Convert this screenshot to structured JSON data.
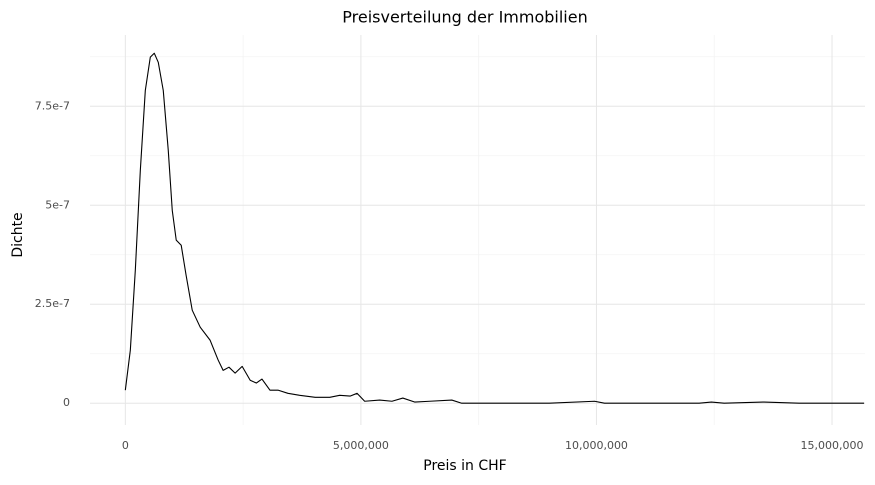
{
  "chart_data": {
    "type": "line",
    "title": "Preisverteilung der Immobilien",
    "x_label": "Preis in CHF",
    "y_label": "Dichte",
    "color": "#000000",
    "grid": true,
    "x": [
      0,
      106000,
      212000,
      318000,
      424000,
      530000,
      614000,
      699000,
      805000,
      911000,
      996000,
      1080000,
      1186000,
      1290000,
      1420000,
      1589000,
      1800000,
      1970000,
      2076000,
      2200000,
      2330000,
      2480000,
      2650000,
      2780000,
      2900000,
      3070000,
      3240000,
      3450000,
      3700000,
      4030000,
      4340000,
      4550000,
      4770000,
      4920000,
      5080000,
      5400000,
      5660000,
      5890000,
      6140000,
      6460000,
      6930000,
      7140000,
      7940000,
      9000000,
      9960000,
      10170000,
      12180000,
      12440000,
      12710000,
      13560000,
      14300000,
      14940000,
      15680000
    ],
    "values": [
      3.3e-08,
      1.34e-07,
      3.36e-07,
      5.88e-07,
      7.9e-07,
      8.74e-07,
      8.84e-07,
      8.61e-07,
      7.9e-07,
      6.39e-07,
      4.87e-07,
      4.12e-07,
      3.99e-07,
      3.23e-07,
      2.35e-07,
      1.92e-07,
      1.59e-07,
      1.09e-07,
      8.3e-08,
      9.1e-08,
      7.6e-08,
      9.3e-08,
      5.8e-08,
      5.1e-08,
      6.1e-08,
      3.3e-08,
      3.3e-08,
      2.5e-08,
      2e-08,
      1.5e-08,
      1.5e-08,
      2e-08,
      1.8e-08,
      2.5e-08,
      5e-09,
      8e-09,
      5e-09,
      1.3e-08,
      3e-09,
      5e-09,
      8e-09,
      0,
      0,
      0,
      5e-09,
      0,
      0,
      3e-09,
      0,
      3e-09,
      0,
      0,
      0
    ],
    "xlim": [
      -750000,
      15700000
    ],
    "ylim": [
      -5.5e-08,
      9.3e-07
    ],
    "xticks": [
      0,
      {
        "value": 5000000,
        "label": "5,000,000"
      },
      {
        "value": 10000000,
        "label": "10,000,000"
      },
      {
        "value": 15000000,
        "label": "15,000,000"
      }
    ],
    "yticks": [
      0,
      {
        "value": 2.5e-07,
        "label": "2.5e-7"
      },
      {
        "value": 5e-07,
        "label": "5e-7"
      },
      {
        "value": 7.5e-07,
        "label": "7.5e-7"
      }
    ],
    "xminor": [
      2500000,
      7500000,
      12500000
    ],
    "yminor": [
      1.25e-07,
      3.75e-07,
      6.25e-07,
      8.75e-07
    ]
  }
}
